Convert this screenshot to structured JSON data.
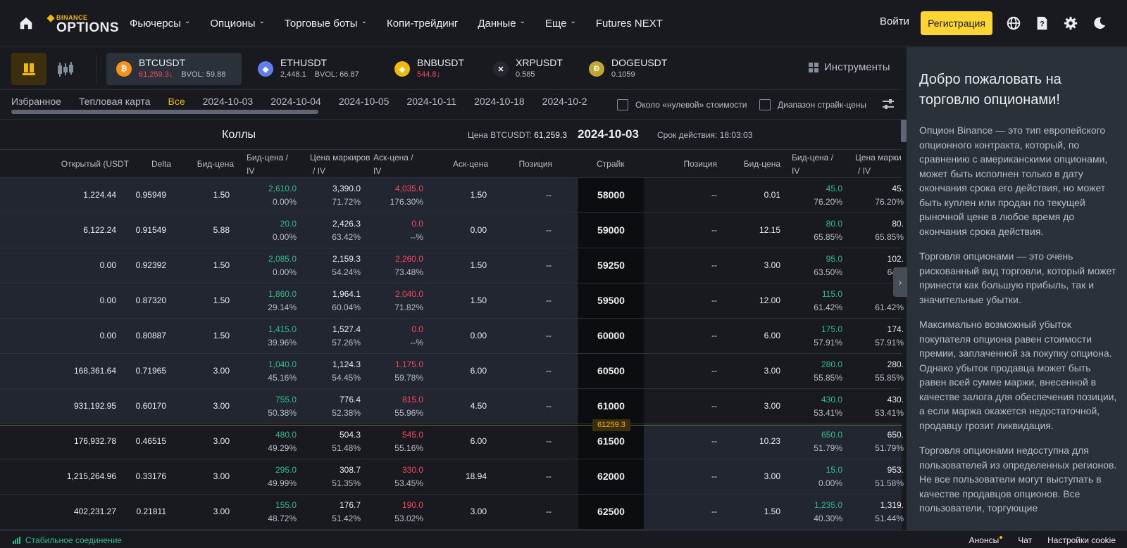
{
  "nav": {
    "logo_top": "BINANCE",
    "logo_bottom": "OPTIONS",
    "items": [
      {
        "label": "Фьючерсы",
        "dropdown": true
      },
      {
        "label": "Опционы",
        "dropdown": true
      },
      {
        "label": "Торговые боты",
        "dropdown": true
      },
      {
        "label": "Копи-трейдинг",
        "dropdown": false
      },
      {
        "label": "Данные",
        "dropdown": true
      },
      {
        "label": "Еще",
        "dropdown": true
      },
      {
        "label": "Futures NEXT",
        "dropdown": false
      }
    ],
    "login": "Войти",
    "register": "Регистрация"
  },
  "tickers": [
    {
      "symbol": "BTCUSDT",
      "price": "61,259.3",
      "dir": "↓",
      "bvol": "BVOL: 59.88",
      "color": "#f7931a",
      "glyph": "₿",
      "price_color": "red"
    },
    {
      "symbol": "ETHUSDT",
      "price": "2,448.1",
      "dir": "",
      "bvol": "BVOL: 66.87",
      "color": "#627eea",
      "glyph": "◆",
      "price_color": "grey"
    },
    {
      "symbol": "BNBUSDT",
      "price": "544.8",
      "dir": "↓",
      "bvol": "",
      "color": "#f0b90b",
      "glyph": "◈",
      "price_color": "red"
    },
    {
      "symbol": "XRPUSDT",
      "price": "0.585",
      "dir": "",
      "bvol": "",
      "color": "#23292f",
      "glyph": "✕",
      "price_color": "grey"
    },
    {
      "symbol": "DOGEUSDT",
      "price": "0.1059",
      "dir": "",
      "bvol": "",
      "color": "#c2a633",
      "glyph": "Ð",
      "price_color": "grey"
    }
  ],
  "instruments": "Инструменты",
  "tabs": [
    "Избранное",
    "Тепловая карта",
    "Все",
    "2024-10-03",
    "2024-10-04",
    "2024-10-05",
    "2024-10-11",
    "2024-10-18",
    "2024-10-2"
  ],
  "active_tab": "Все",
  "checkbox_near_zero": "Около «нулевой» стоимости",
  "checkbox_strike_range": "Диапазон страйк-цены",
  "section": {
    "calls": "Коллы",
    "price_label": "Цена BTCUSDT:",
    "price_value": "61,259.3",
    "date": "2024-10-03",
    "expiry": "Срок действия: 18:03:03"
  },
  "headers": {
    "open": "Открытый (USDT",
    "delta": "Delta",
    "bid": "Бид-цена",
    "bid_iv_1": "Бид-цена /",
    "bid_iv_2": "IV",
    "mark_iv_1": "Цена маркиров",
    "mark_iv_2": "/ IV",
    "ask_iv_1": "Аск-цена /",
    "ask_iv_2": "IV",
    "ask": "Аск-цена",
    "position": "Позиция",
    "strike": "Страйк",
    "p_position": "Позиция",
    "p_bid": "Бид-цена",
    "p_bid_iv_1": "Бид-цена /",
    "p_bid_iv_2": "IV",
    "p_mark_iv_1": "Цена марки",
    "p_mark_iv_2": "/ IV"
  },
  "rows": [
    {
      "open": "1,224.44",
      "delta": "0.95949",
      "bid": "1.50",
      "bidp": "2,610.0",
      "bidiv": "0.00%",
      "mark": "3,390.0",
      "markiv": "71.72%",
      "askp": "4,035.0",
      "askiv": "176.30%",
      "ask": "1.50",
      "pos": "--",
      "strike": "58000",
      "ppos": "--",
      "pbid": "0.01",
      "pbidp": "45.0",
      "pbidiv": "76.20%",
      "pmark": "45.",
      "pmarkiv": "76.20%",
      "itm": true
    },
    {
      "open": "6,122.24",
      "delta": "0.91549",
      "bid": "5.88",
      "bidp": "20.0",
      "bidiv": "0.00%",
      "mark": "2,426.3",
      "markiv": "63.42%",
      "askp": "0.0",
      "askiv": "--%",
      "ask": "0.00",
      "pos": "--",
      "strike": "59000",
      "ppos": "--",
      "pbid": "12.15",
      "pbidp": "80.0",
      "pbidiv": "65.85%",
      "pmark": "80.",
      "pmarkiv": "65.85%",
      "itm": true
    },
    {
      "open": "0.00",
      "delta": "0.92392",
      "bid": "1.50",
      "bidp": "2,085.0",
      "bidiv": "0.00%",
      "mark": "2,159.3",
      "markiv": "54.24%",
      "askp": "2,260.0",
      "askiv": "73.48%",
      "ask": "1.50",
      "pos": "--",
      "strike": "59250",
      "ppos": "--",
      "pbid": "3.00",
      "pbidp": "95.0",
      "pbidiv": "63.50%",
      "pmark": "102.",
      "pmarkiv": "64.8",
      "itm": true
    },
    {
      "open": "0.00",
      "delta": "0.87320",
      "bid": "1.50",
      "bidp": "1,860.0",
      "bidiv": "29.14%",
      "mark": "1,964.1",
      "markiv": "60.04%",
      "askp": "2,040.0",
      "askiv": "71.82%",
      "ask": "1.50",
      "pos": "--",
      "strike": "59500",
      "ppos": "--",
      "pbid": "12.00",
      "pbidp": "115.0",
      "pbidiv": "61.42%",
      "pmark": "11",
      "pmarkiv": "61.42%",
      "itm": true
    },
    {
      "open": "0.00",
      "delta": "0.80887",
      "bid": "1.50",
      "bidp": "1,415.0",
      "bidiv": "39.96%",
      "mark": "1,527.4",
      "markiv": "57.26%",
      "askp": "0.0",
      "askiv": "--%",
      "ask": "0.00",
      "pos": "--",
      "strike": "60000",
      "ppos": "--",
      "pbid": "6.00",
      "pbidp": "175.0",
      "pbidiv": "57.91%",
      "pmark": "174.",
      "pmarkiv": "57.91%",
      "itm": true
    },
    {
      "open": "168,361.64",
      "delta": "0.71965",
      "bid": "3.00",
      "bidp": "1,040.0",
      "bidiv": "45.16%",
      "mark": "1,124.3",
      "markiv": "54.45%",
      "askp": "1,175.0",
      "askiv": "59.78%",
      "ask": "6.00",
      "pos": "--",
      "strike": "60500",
      "ppos": "--",
      "pbid": "3.00",
      "pbidp": "280.0",
      "pbidiv": "55.85%",
      "pmark": "280.",
      "pmarkiv": "55.85%",
      "itm": true
    },
    {
      "open": "931,192.95",
      "delta": "0.60170",
      "bid": "3.00",
      "bidp": "755.0",
      "bidiv": "50.38%",
      "mark": "776.4",
      "markiv": "52.38%",
      "askp": "815.0",
      "askiv": "55.96%",
      "ask": "4.50",
      "pos": "--",
      "strike": "61000",
      "ppos": "--",
      "pbid": "3.00",
      "pbidp": "430.0",
      "pbidiv": "53.41%",
      "pmark": "430.",
      "pmarkiv": "53.41%",
      "itm": true
    },
    {
      "open": "176,932.78",
      "delta": "0.46515",
      "bid": "3.00",
      "bidp": "480.0",
      "bidiv": "49.29%",
      "mark": "504.3",
      "markiv": "51.48%",
      "askp": "545.0",
      "askiv": "55.16%",
      "ask": "6.00",
      "pos": "--",
      "strike": "61500",
      "ppos": "--",
      "pbid": "10.23",
      "pbidp": "650.0",
      "pbidiv": "51.79%",
      "pmark": "650.",
      "pmarkiv": "51.79%",
      "itm": false
    },
    {
      "open": "1,215,264.96",
      "delta": "0.33176",
      "bid": "3.00",
      "bidp": "295.0",
      "bidiv": "49.99%",
      "mark": "308.7",
      "markiv": "51.35%",
      "askp": "330.0",
      "askiv": "53.45%",
      "ask": "18.94",
      "pos": "--",
      "strike": "62000",
      "ppos": "--",
      "pbid": "3.00",
      "pbidp": "15.0",
      "pbidiv": "0.00%",
      "pmark": "953.",
      "pmarkiv": "51.58%",
      "itm": false
    },
    {
      "open": "402,231.27",
      "delta": "0.21811",
      "bid": "3.00",
      "bidp": "155.0",
      "bidiv": "48.72%",
      "mark": "176.7",
      "markiv": "51.42%",
      "askp": "190.0",
      "askiv": "53.02%",
      "ask": "3.00",
      "pos": "--",
      "strike": "62500",
      "ppos": "--",
      "pbid": "1.50",
      "pbidp": "1,235.0",
      "pbidiv": "40.30%",
      "pmark": "1,319.",
      "pmarkiv": "51.44%",
      "itm": false
    }
  ],
  "current_price_badge": "61259.3",
  "panel": {
    "title": "Добро пожаловать на торговлю опционами!",
    "paragraphs": [
      "Опцион Binance — это тип европейского опционного контракта, который, по сравнению с американскими опционами, может быть исполнен только в дату окончания срока его действия, но может быть куплен или продан по текущей рыночной цене в любое время до окончания срока действия.",
      "Торговля опционами — это очень рискованный вид торговли, который может принести как большую прибыль, так и значительные убытки.",
      "Максимально возможный убыток покупателя опциона равен стоимости премии, заплаченной за покупку опциона. Однако убыток продавца может быть равен всей сумме маржи, внесенной в качестве залога для обеспечения позиции, а если маржа окажется недостаточной, продавцу грозит ликвидация.",
      "Торговля опционами недоступна для пользователей из определенных регионов. Не все пользователи могут выступать в качестве продавцов опционов. Все пользователи, торгующие"
    ]
  },
  "status": {
    "connection": "Стабильное соединение",
    "announcements": "Анонсы",
    "chat": "Чат",
    "cookies": "Настройки cookie"
  }
}
